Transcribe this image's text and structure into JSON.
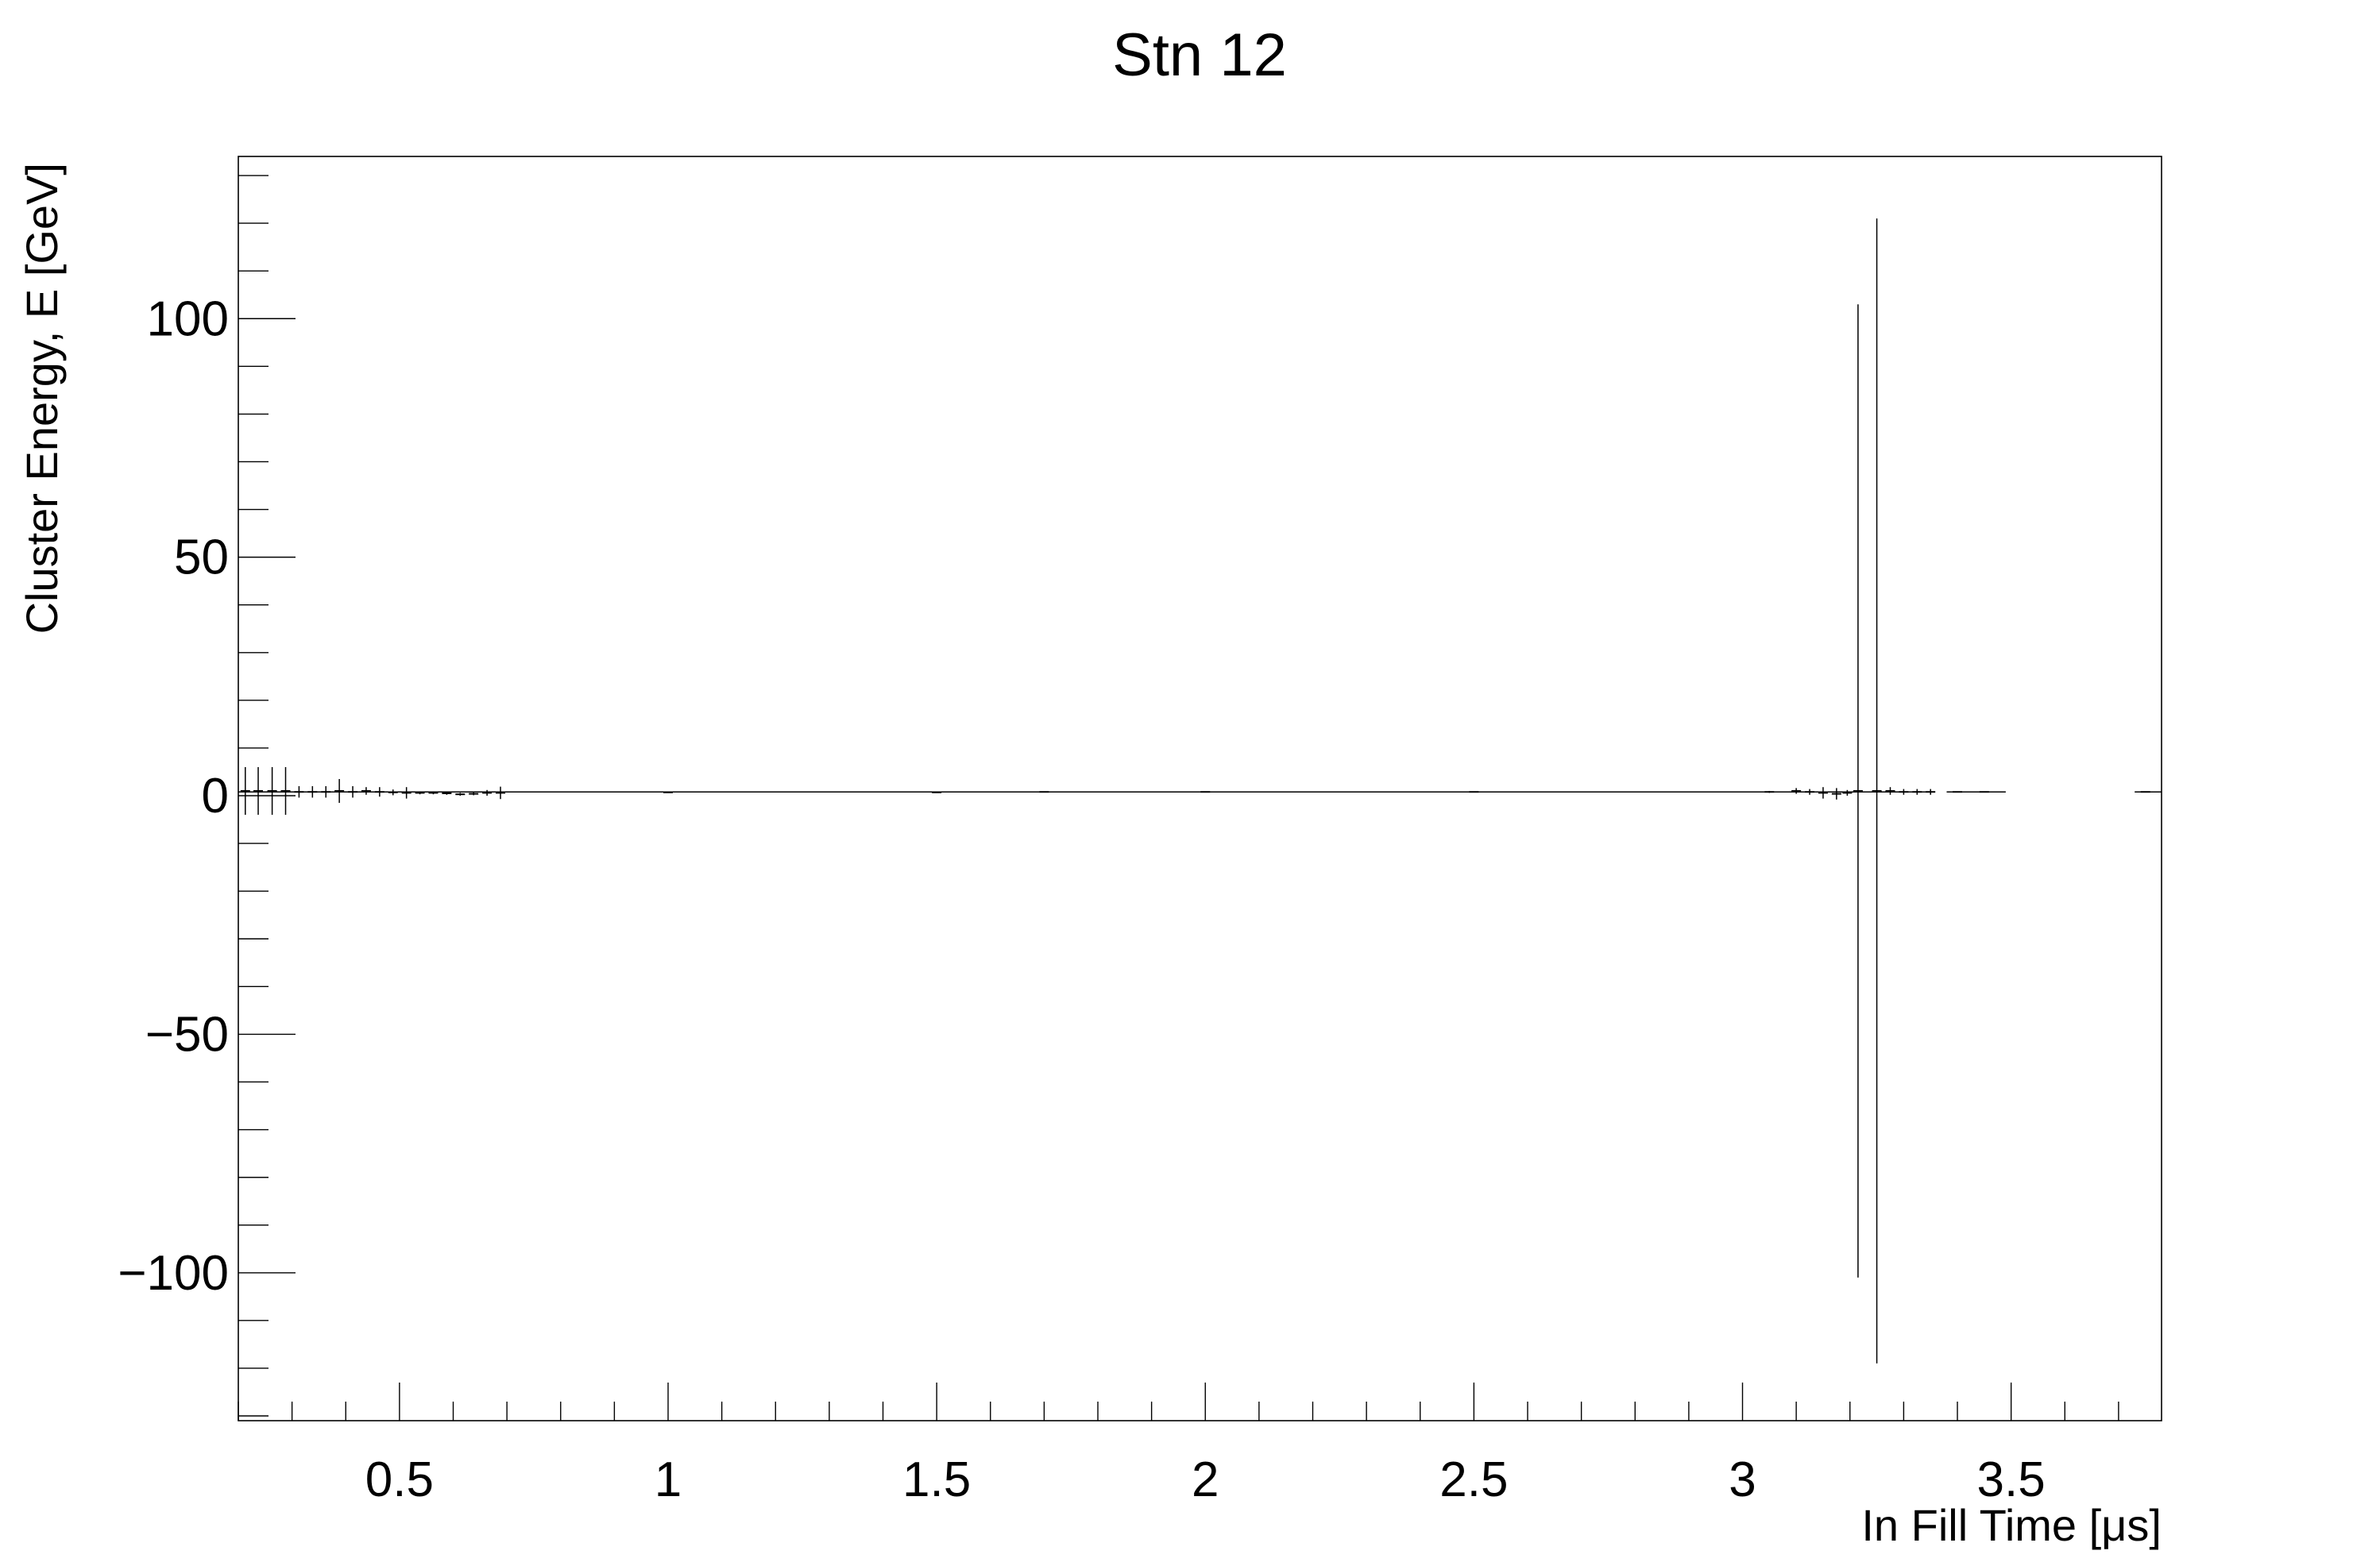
{
  "chart_data": {
    "type": "scatter",
    "title": "Stn 12",
    "xlabel": "In Fill Time [μs]",
    "ylabel": "Cluster Energy, E [GeV]",
    "xlim": [
      0.2,
      3.78
    ],
    "ylim": [
      -131,
      134
    ],
    "x_ticks": [
      0.5,
      1,
      1.5,
      2,
      2.5,
      3,
      3.5
    ],
    "x_tick_labels": [
      "0.5",
      "1",
      "1.5",
      "2",
      "2.5",
      "3",
      "3.5"
    ],
    "y_ticks": [
      -100,
      -50,
      0,
      50,
      100
    ],
    "y_tick_labels": [
      "−100",
      "−50",
      "0",
      "50",
      "100"
    ],
    "grid": false,
    "legend": "none",
    "marker": "error-bar",
    "points": [
      {
        "x": 0.213,
        "y": 1.0,
        "yerr": 5.0
      },
      {
        "x": 0.237,
        "y": 1.0,
        "yerr": 5.0
      },
      {
        "x": 0.263,
        "y": 1.0,
        "yerr": 5.0
      },
      {
        "x": 0.288,
        "y": 1.0,
        "yerr": 5.0
      },
      {
        "x": 0.313,
        "y": 0.8,
        "yerr": 1.2
      },
      {
        "x": 0.338,
        "y": 0.8,
        "yerr": 1.2
      },
      {
        "x": 0.363,
        "y": 0.8,
        "yerr": 1.2
      },
      {
        "x": 0.388,
        "y": 1.0,
        "yerr": 2.5
      },
      {
        "x": 0.413,
        "y": 0.8,
        "yerr": 1.2
      },
      {
        "x": 0.438,
        "y": 1.0,
        "yerr": 0.8
      },
      {
        "x": 0.463,
        "y": 0.8,
        "yerr": 1.0
      },
      {
        "x": 0.488,
        "y": 0.7,
        "yerr": 0.6
      },
      {
        "x": 0.513,
        "y": 0.6,
        "yerr": 1.2
      },
      {
        "x": 0.538,
        "y": 0.6,
        "yerr": 0.3
      },
      {
        "x": 0.563,
        "y": 0.6,
        "yerr": 0.3
      },
      {
        "x": 0.588,
        "y": 0.5,
        "yerr": 0.3
      },
      {
        "x": 0.613,
        "y": 0.3,
        "yerr": 0.3
      },
      {
        "x": 0.638,
        "y": 0.4,
        "yerr": 0.3
      },
      {
        "x": 0.663,
        "y": 0.6,
        "yerr": 0.6
      },
      {
        "x": 0.688,
        "y": 0.6,
        "yerr": 1.3
      },
      {
        "x": 1.0,
        "y": 0.7,
        "yerr": 0.1
      },
      {
        "x": 1.5,
        "y": 0.7,
        "yerr": 0.1
      },
      {
        "x": 1.7,
        "y": 0.8,
        "yerr": 0.1
      },
      {
        "x": 2.0,
        "y": 0.8,
        "yerr": 0.1
      },
      {
        "x": 2.5,
        "y": 0.8,
        "yerr": 0.1
      },
      {
        "x": 3.05,
        "y": 0.8,
        "yerr": 0.2
      },
      {
        "x": 3.1,
        "y": 1.0,
        "yerr": 0.6
      },
      {
        "x": 3.125,
        "y": 0.8,
        "yerr": 0.6
      },
      {
        "x": 3.15,
        "y": 0.6,
        "yerr": 1.2
      },
      {
        "x": 3.175,
        "y": 0.4,
        "yerr": 1.2
      },
      {
        "x": 3.195,
        "y": 0.6,
        "yerr": 0.6
      },
      {
        "x": 3.215,
        "y": 1.0,
        "yerr": 102.0
      },
      {
        "x": 3.25,
        "y": 1.0,
        "yerr": 120.0
      },
      {
        "x": 3.275,
        "y": 1.0,
        "yerr": 0.8
      },
      {
        "x": 3.3,
        "y": 0.8,
        "yerr": 0.6
      },
      {
        "x": 3.325,
        "y": 0.8,
        "yerr": 0.6
      },
      {
        "x": 3.35,
        "y": 0.8,
        "yerr": 0.6
      },
      {
        "x": 3.4,
        "y": 0.8,
        "yerr": 0.1
      },
      {
        "x": 3.45,
        "y": 0.8,
        "yerr": 0.1
      },
      {
        "x": 3.75,
        "y": 0.8,
        "yerr": 0.1
      }
    ],
    "segments": [
      {
        "x0": 0.2,
        "x1": 3.35,
        "y": 0.8
      },
      {
        "x0": 3.38,
        "x1": 3.49,
        "y": 0.8
      },
      {
        "x0": 3.73,
        "x1": 3.78,
        "y": 0.8
      }
    ]
  }
}
